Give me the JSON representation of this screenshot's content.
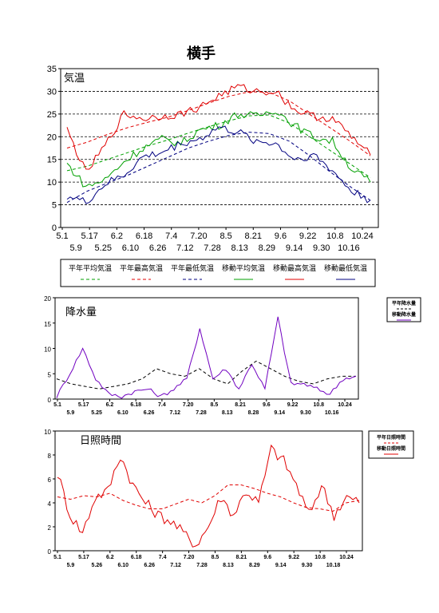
{
  "page": {
    "title": "横手"
  },
  "chart_data": [
    {
      "type": "line",
      "panel_label": "気温",
      "ylim": [
        0,
        35
      ],
      "yticks": [
        "0",
        "5",
        "10",
        "15",
        "20",
        "25",
        "30",
        "35"
      ],
      "xticks_top": [
        "5.1",
        "5.17",
        "6.2",
        "6.18",
        "7.4",
        "7.20",
        "8.5",
        "8.21",
        "9.6",
        "9.22",
        "10.8",
        "10.24"
      ],
      "xticks_bottom": [
        "5.9",
        "5.25",
        "6.10",
        "6.26",
        "7.12",
        "7.28",
        "8.13",
        "8.29",
        "9.14",
        "9.30",
        "10.16"
      ],
      "grid": "horizontal-dashed",
      "legend_placement": "below",
      "x_start": "5.1",
      "x_end": "10.31",
      "series": [
        {
          "name": "平年平均気温",
          "style": "dashed",
          "color": "#00a000",
          "values": [
            12.5,
            13.5,
            15,
            16.5,
            18,
            19.3,
            20.8,
            22.2,
            23.5,
            24.6,
            24.8,
            23,
            20,
            17,
            14,
            11
          ]
        },
        {
          "name": "平年最高気温",
          "style": "dashed",
          "color": "#e00000",
          "values": [
            17.5,
            18.8,
            20.5,
            22,
            23.2,
            24.3,
            25.8,
            27.4,
            28.9,
            29.9,
            29.8,
            27.9,
            24.9,
            22,
            19,
            15.8
          ]
        },
        {
          "name": "平年最低気温",
          "style": "dashed",
          "color": "#000080",
          "values": [
            5.5,
            8,
            9.8,
            11.5,
            13.5,
            15.5,
            17.5,
            19,
            20.3,
            21,
            20.7,
            19,
            15.8,
            12.3,
            9,
            6
          ]
        },
        {
          "name": "移動平均気温",
          "style": "solid",
          "color": "#00a000",
          "values": [
            14,
            9,
            10.5,
            14.5,
            17.5,
            19.5,
            18.5,
            21.5,
            22.5,
            25,
            24.5,
            26,
            22.5,
            20,
            19,
            13,
            10
          ]
        },
        {
          "name": "移動最高気温",
          "style": "solid",
          "color": "#e00000",
          "values": [
            21.5,
            12,
            18,
            25,
            24,
            24.5,
            25,
            26.5,
            29,
            31,
            30,
            30,
            26,
            24.5,
            24,
            20,
            16
          ]
        },
        {
          "name": "移動最低気温",
          "style": "solid",
          "color": "#000080",
          "values": [
            7,
            5.5,
            9.5,
            11.5,
            15.5,
            16.5,
            18.5,
            19.5,
            22,
            21,
            19,
            18.5,
            15,
            16,
            12.5,
            8,
            6
          ]
        }
      ]
    },
    {
      "type": "line",
      "panel_label": "降水量",
      "ylim": [
        0,
        20
      ],
      "yticks": [
        "0",
        "5",
        "10",
        "15",
        "20"
      ],
      "xticks_top": [
        "5.1",
        "5.17",
        "6.2",
        "6.18",
        "7.4",
        "7.20",
        "8.5",
        "8.21",
        "9.6",
        "9.22",
        "10.8",
        "10.24"
      ],
      "xticks_bottom": [
        "5.9",
        "5.25",
        "6.10",
        "6.26",
        "7.12",
        "7.28",
        "8.13",
        "8.28",
        "9.14",
        "9.30",
        "10.16"
      ],
      "legend_placement": "right",
      "series": [
        {
          "name": "平年降水量",
          "style": "dashed",
          "color": "#000000",
          "values": [
            4,
            3,
            2.5,
            2,
            2.5,
            3,
            4,
            6,
            5,
            4.5,
            6,
            4,
            3,
            5.5,
            7.5,
            6,
            4.5,
            3.5,
            3,
            4,
            4.5,
            4.5
          ]
        },
        {
          "name": "移動降水量",
          "style": "solid",
          "color": "#7000c0",
          "values": [
            0.5,
            5,
            10,
            4,
            1,
            0.5,
            1.5,
            2,
            0.5,
            2,
            4,
            14,
            4,
            6,
            2,
            7,
            2,
            16,
            3,
            3,
            2,
            1,
            4,
            4.5
          ]
        }
      ]
    },
    {
      "type": "line",
      "panel_label": "日照時間",
      "ylim": [
        0,
        10
      ],
      "yticks": [
        "0",
        "2",
        "4",
        "6",
        "8",
        "10"
      ],
      "xticks_top": [
        "5.1",
        "5.17",
        "6.2",
        "6.18",
        "7.4",
        "7.20",
        "8.5",
        "8.21",
        "9.6",
        "9.22",
        "10.8",
        "10.24"
      ],
      "xticks_bottom": [
        "5.9",
        "5.26",
        "6.10",
        "6.26",
        "7.12",
        "7.28",
        "8.13",
        "8.29",
        "9.14",
        "9.30",
        "10.18"
      ],
      "legend_placement": "right",
      "series": [
        {
          "name": "平年日照時間",
          "style": "dashed",
          "color": "#e00000",
          "values": [
            4.5,
            4.3,
            4.6,
            4.5,
            4.8,
            4.2,
            3.8,
            3.5,
            3.5,
            3.9,
            4.3,
            4,
            4.6,
            5.5,
            5.5,
            5.2,
            4.8,
            4.5,
            4,
            3.6,
            3.5,
            3.3,
            4,
            4.2
          ]
        },
        {
          "name": "移動日照時間",
          "style": "solid",
          "color": "#e00000",
          "values": [
            6.5,
            3,
            1.5,
            4.5,
            5,
            8,
            5.5,
            4,
            3,
            2.5,
            1.5,
            0.5,
            2,
            4.5,
            3,
            5,
            4,
            8.5,
            7.5,
            5.5,
            3,
            5.5,
            3,
            4.5,
            4
          ]
        }
      ]
    }
  ]
}
